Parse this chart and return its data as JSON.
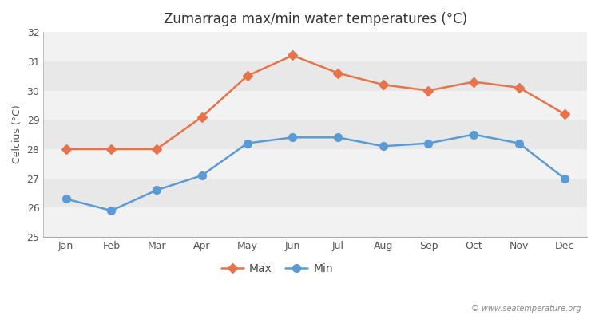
{
  "title": "Zumarraga max/min water temperatures (°C)",
  "ylabel": "Celcius (°C)",
  "months": [
    "Jan",
    "Feb",
    "Mar",
    "Apr",
    "May",
    "Jun",
    "Jul",
    "Aug",
    "Sep",
    "Oct",
    "Nov",
    "Dec"
  ],
  "max_temps": [
    28.0,
    28.0,
    28.0,
    29.1,
    30.5,
    31.2,
    30.6,
    30.2,
    30.0,
    30.3,
    30.1,
    29.2
  ],
  "min_temps": [
    26.3,
    25.9,
    26.6,
    27.1,
    28.2,
    28.4,
    28.4,
    28.1,
    28.2,
    28.5,
    28.2,
    27.0
  ],
  "max_color": "#e8734a",
  "min_color": "#5b9bd5",
  "bg_color": "#ffffff",
  "plot_bg_light": "#f2f2f2",
  "plot_bg_dark": "#e8e8e8",
  "ylim": [
    25,
    32
  ],
  "yticks": [
    25,
    26,
    27,
    28,
    29,
    30,
    31,
    32
  ],
  "max_marker": "D",
  "min_marker": "o",
  "marker_size_max": 6,
  "marker_size_min": 7,
  "line_width": 1.8,
  "title_fontsize": 12,
  "label_fontsize": 9,
  "tick_fontsize": 9,
  "watermark": "© www.seatemperature.org"
}
